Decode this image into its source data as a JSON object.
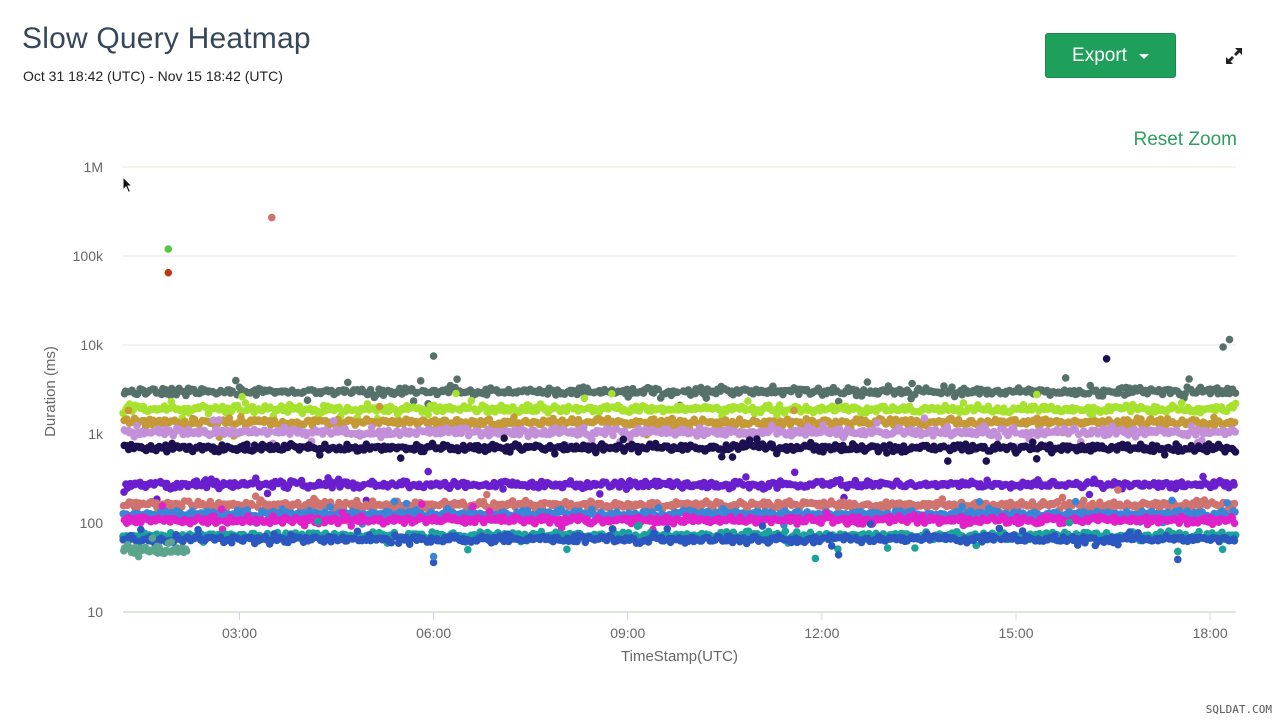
{
  "header": {
    "title": "Slow Query Heatmap",
    "date_range": "Oct 31 18:42 (UTC) - Nov 15 18:42 (UTC)",
    "export_label": "Export",
    "reset_zoom_label": "Reset Zoom",
    "expand_icon": "expand-icon"
  },
  "watermark": "SQLDAT.COM",
  "colors": {
    "accent": "#1ea05a",
    "grid": "#e6e6f0",
    "axis_text": "#666666"
  },
  "chart_data": {
    "type": "scatter",
    "title": "",
    "xlabel": "TimeStamp(UTC)",
    "ylabel": "Duration (ms)",
    "yscale": "log",
    "ylim": [
      10,
      1000000
    ],
    "y_ticks": [
      {
        "value": 10,
        "label": "10"
      },
      {
        "value": 100,
        "label": "100"
      },
      {
        "value": 1000,
        "label": "1k"
      },
      {
        "value": 10000,
        "label": "10k"
      },
      {
        "value": 100000,
        "label": "100k"
      },
      {
        "value": 1000000,
        "label": "1M"
      }
    ],
    "xlim": [
      "01:12",
      "18:24"
    ],
    "x_ticks": [
      "03:00",
      "06:00",
      "09:00",
      "12:00",
      "15:00",
      "18:00"
    ],
    "grid": true,
    "legend": "none",
    "bands": [
      {
        "color": "#56706a",
        "median": 3000,
        "start": "01:12",
        "end": "18:24"
      },
      {
        "color": "#a6e22e",
        "median": 1900,
        "start": "01:12",
        "end": "18:24"
      },
      {
        "color": "#c59a36",
        "median": 1350,
        "start": "01:12",
        "end": "18:24"
      },
      {
        "color": "#c48fd9",
        "median": 1050,
        "start": "01:12",
        "end": "18:24"
      },
      {
        "color": "#1c1050",
        "median": 700,
        "start": "01:12",
        "end": "18:24"
      },
      {
        "color": "#6a1fcf",
        "median": 270,
        "start": "01:12",
        "end": "18:24"
      },
      {
        "color": "#d0726e",
        "median": 160,
        "start": "01:12",
        "end": "18:24"
      },
      {
        "color": "#3a86d6",
        "median": 125,
        "start": "01:12",
        "end": "18:24"
      },
      {
        "color": "#e020c8",
        "median": 108,
        "start": "01:12",
        "end": "18:24"
      },
      {
        "color": "#1aa39b",
        "median": 72,
        "start": "01:12",
        "end": "18:24"
      },
      {
        "color": "#2a58c0",
        "median": 66,
        "start": "01:12",
        "end": "18:24"
      },
      {
        "color": "#5aa58c",
        "median": 50,
        "start": "01:12",
        "end": "02:12"
      }
    ],
    "outliers": [
      {
        "time": "01:54",
        "value": 120000,
        "color": "#54c646"
      },
      {
        "time": "01:54",
        "value": 65000,
        "color": "#c03a10"
      },
      {
        "time": "03:30",
        "value": 270000,
        "color": "#d0726e"
      },
      {
        "time": "06:00",
        "value": 7500,
        "color": "#56706a"
      },
      {
        "time": "16:24",
        "value": 7000,
        "color": "#1c1050"
      },
      {
        "time": "18:12",
        "value": 9500,
        "color": "#56706a"
      },
      {
        "time": "18:18",
        "value": 11500,
        "color": "#56706a"
      },
      {
        "time": "06:00",
        "value": 36,
        "color": "#2a58c0"
      },
      {
        "time": "06:00",
        "value": 42,
        "color": "#3a86d6"
      },
      {
        "time": "11:54",
        "value": 40,
        "color": "#1aa39b"
      },
      {
        "time": "17:30",
        "value": 39,
        "color": "#2a58c0"
      },
      {
        "time": "17:30",
        "value": 48,
        "color": "#1aa39b"
      }
    ]
  }
}
